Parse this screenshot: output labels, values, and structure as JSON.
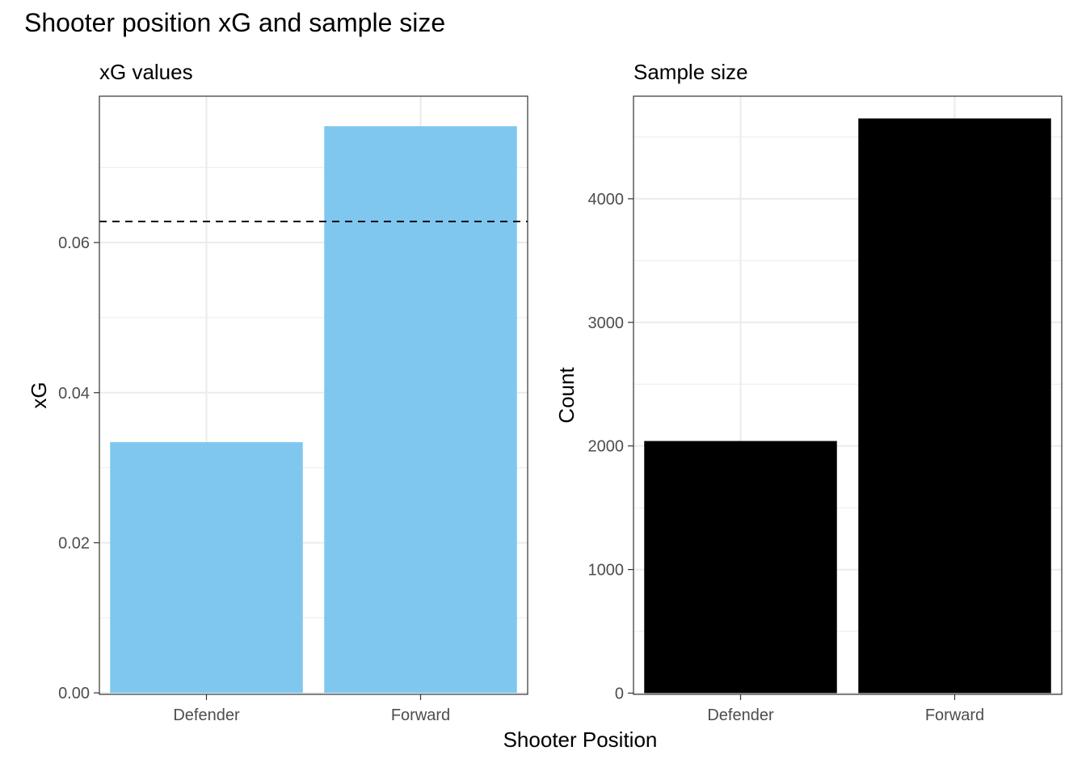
{
  "title": "Shooter position xG and sample size",
  "shared_xlabel": "Shooter Position",
  "chart_data": [
    {
      "type": "bar",
      "subtitle": "xG values",
      "ylabel": "xG",
      "categories": [
        "Defender",
        "Forward"
      ],
      "values": [
        0.0334,
        0.0755
      ],
      "bar_color": "#7FC7EF",
      "reference_line": {
        "y": 0.0628,
        "style": "dashed",
        "color": "#000000"
      },
      "ylim": [
        -0.0002,
        0.0795
      ],
      "yticks": [
        0.0,
        0.02,
        0.04,
        0.06
      ],
      "ytick_labels": [
        "0.00",
        "0.02",
        "0.04",
        "0.06"
      ],
      "yminor": [
        0.01,
        0.03,
        0.05,
        0.07
      ],
      "grid": true
    },
    {
      "type": "bar",
      "subtitle": "Sample size",
      "ylabel": "Count",
      "categories": [
        "Defender",
        "Forward"
      ],
      "values": [
        2040,
        4650
      ],
      "bar_color": "#000000",
      "ylim": [
        -10,
        4830
      ],
      "yticks": [
        0,
        1000,
        2000,
        3000,
        4000
      ],
      "ytick_labels": [
        "0",
        "1000",
        "2000",
        "3000",
        "4000"
      ],
      "yminor": [
        500,
        1500,
        2500,
        3500,
        4500
      ],
      "grid": true
    }
  ]
}
